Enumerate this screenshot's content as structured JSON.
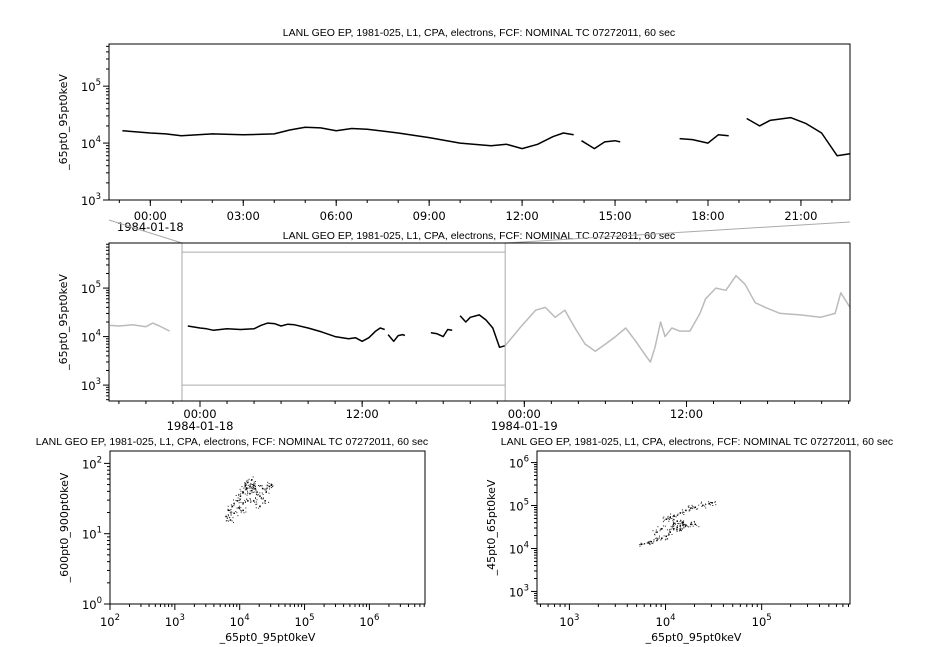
{
  "chart_data": [
    {
      "type": "line",
      "title": "LANL GEO EP, 1981-025, L1, CPA, electrons, FCF: NOMINAL TC 07272011, 60 sec",
      "xlabel": "",
      "ylabel": "_65pt0_95pt0keV",
      "yscale": "log",
      "ylim": [
        1000,
        550000
      ],
      "yticks": [
        1000,
        10000,
        100000
      ],
      "xlim": [
        "1984-01-17 22:40",
        "1984-01-18 22:35"
      ],
      "xticks": [
        {
          "t": "1984-01-18 00:00",
          "label": "00:00",
          "date": "1984-01-18"
        },
        {
          "t": "1984-01-18 03:00",
          "label": "03:00"
        },
        {
          "t": "1984-01-18 06:00",
          "label": "06:00"
        },
        {
          "t": "1984-01-18 09:00",
          "label": "09:00"
        },
        {
          "t": "1984-01-18 12:00",
          "label": "12:00"
        },
        {
          "t": "1984-01-18 15:00",
          "label": "15:00"
        },
        {
          "t": "1984-01-18 18:00",
          "label": "18:00"
        },
        {
          "t": "1984-01-18 21:00",
          "label": "21:00"
        }
      ],
      "minor_tick_hours": 1,
      "grid": false,
      "series": [
        {
          "color": "#000000",
          "points": [
            [
              "1984-01-17 23:06",
              16500
            ],
            [
              "1984-01-18 00:00",
              15000
            ],
            [
              "1984-01-18 00:30",
              14500
            ],
            [
              "1984-01-18 01:00",
              13500
            ],
            [
              "1984-01-18 02:00",
              14500
            ],
            [
              "1984-01-18 03:00",
              14000
            ],
            [
              "1984-01-18 04:00",
              14500
            ],
            [
              "1984-01-18 04:30",
              17000
            ],
            [
              "1984-01-18 05:00",
              19000
            ],
            [
              "1984-01-18 05:30",
              18500
            ],
            [
              "1984-01-18 06:00",
              16500
            ],
            [
              "1984-01-18 06:30",
              18000
            ],
            [
              "1984-01-18 07:00",
              17500
            ],
            [
              "1984-01-18 08:00",
              15000
            ],
            [
              "1984-01-18 09:00",
              12500
            ],
            [
              "1984-01-18 10:00",
              10000
            ],
            [
              "1984-01-18 11:00",
              9000
            ],
            [
              "1984-01-18 11:30",
              9500
            ],
            [
              "1984-01-18 12:00",
              8000
            ],
            [
              "1984-01-18 12:30",
              9500
            ],
            [
              "1984-01-18 13:00",
              13000
            ],
            [
              "1984-01-18 13:20",
              15000
            ],
            [
              "1984-01-18 13:40",
              14000
            ],
            [
              "1984-01-18 13:45",
              null
            ],
            [
              "1984-01-18 13:55",
              11000
            ],
            [
              "1984-01-18 14:20",
              8000
            ],
            [
              "1984-01-18 14:40",
              10500
            ],
            [
              "1984-01-18 15:00",
              11000
            ],
            [
              "1984-01-18 15:10",
              10500
            ],
            [
              "1984-01-18 16:00",
              null
            ],
            [
              "1984-01-18 17:05",
              12000
            ],
            [
              "1984-01-18 17:30",
              11500
            ],
            [
              "1984-01-18 18:00",
              10000
            ],
            [
              "1984-01-18 18:20",
              14000
            ],
            [
              "1984-01-18 18:40",
              13500
            ],
            [
              "1984-01-18 19:00",
              null
            ],
            [
              "1984-01-18 19:15",
              27000
            ],
            [
              "1984-01-18 19:40",
              20000
            ],
            [
              "1984-01-18 20:00",
              25000
            ],
            [
              "1984-01-18 20:40",
              28000
            ],
            [
              "1984-01-18 21:10",
              22000
            ],
            [
              "1984-01-18 21:40",
              15000
            ],
            [
              "1984-01-18 22:10",
              6000
            ],
            [
              "1984-01-18 22:35",
              6500
            ]
          ]
        }
      ]
    },
    {
      "type": "line",
      "title": "LANL GEO EP, 1981-025, L1, CPA, electrons, FCF: NOMINAL TC 07272011, 60 sec",
      "xlabel": "",
      "ylabel": "_65pt0_95pt0keV",
      "yscale": "log",
      "ylim": [
        470,
        850000
      ],
      "yticks": [
        1000,
        10000,
        100000
      ],
      "xlim": [
        "1984-01-17 17:16",
        "1984-01-20 00:06"
      ],
      "xticks": [
        {
          "t": "1984-01-18 00:00",
          "label": "00:00",
          "date": "1984-01-18"
        },
        {
          "t": "1984-01-18 12:00",
          "label": "12:00"
        },
        {
          "t": "1984-01-19 00:00",
          "label": "00:00",
          "date": "1984-01-19"
        },
        {
          "t": "1984-01-19 12:00",
          "label": "12:00"
        }
      ],
      "minor_tick_hours": 2,
      "grid": false,
      "zoom_box": {
        "xlim": [
          "1984-01-17 22:40",
          "1984-01-18 22:35"
        ],
        "ylim": [
          1000,
          550000
        ]
      },
      "focus_series_from_chart": 0,
      "series": [
        {
          "color": "#bbbbbb",
          "points": [
            [
              "1984-01-17 17:20",
              17000
            ],
            [
              "1984-01-17 18:00",
              16500
            ],
            [
              "1984-01-17 19:00",
              17500
            ],
            [
              "1984-01-17 20:00",
              16000
            ],
            [
              "1984-01-17 20:30",
              19000
            ],
            [
              "1984-01-17 21:00",
              16500
            ],
            [
              "1984-01-17 21:45",
              13000
            ]
          ]
        },
        {
          "color": "#bbbbbb",
          "points": [
            [
              "1984-01-18 22:35",
              6500
            ],
            [
              "1984-01-18 23:40",
              15000
            ],
            [
              "1984-01-19 00:50",
              35000
            ],
            [
              "1984-01-19 01:33",
              40000
            ],
            [
              "1984-01-19 02:17",
              25000
            ],
            [
              "1984-01-19 03:00",
              35000
            ],
            [
              "1984-01-19 03:45",
              15000
            ],
            [
              "1984-01-19 04:30",
              7000
            ],
            [
              "1984-01-19 05:15",
              5000
            ],
            [
              "1984-01-19 06:00",
              7000
            ],
            [
              "1984-01-19 06:45",
              10000
            ],
            [
              "1984-01-19 07:30",
              15000
            ],
            [
              "1984-01-19 08:15",
              8000
            ],
            [
              "1984-01-19 09:00",
              4000
            ],
            [
              "1984-01-19 09:20",
              3000
            ],
            [
              "1984-01-19 09:40",
              6000
            ],
            [
              "1984-01-19 10:05",
              20000
            ],
            [
              "1984-01-19 10:25",
              10000
            ],
            [
              "1984-01-19 10:55",
              15000
            ],
            [
              "1984-01-19 11:30",
              13000
            ],
            [
              "1984-01-19 12:15",
              13000
            ],
            [
              "1984-01-19 13:00",
              30000
            ],
            [
              "1984-01-19 13:25",
              60000
            ],
            [
              "1984-01-19 14:10",
              100000
            ],
            [
              "1984-01-19 14:55",
              90000
            ],
            [
              "1984-01-19 15:40",
              180000
            ],
            [
              "1984-01-19 16:20",
              120000
            ],
            [
              "1984-01-19 17:05",
              50000
            ],
            [
              "1984-01-19 17:50",
              40000
            ],
            [
              "1984-01-19 18:55",
              30000
            ],
            [
              "1984-01-19 20:25",
              28000
            ],
            [
              "1984-01-19 21:55",
              25000
            ],
            [
              "1984-01-19 23:00",
              30000
            ],
            [
              "1984-01-19 23:25",
              80000
            ],
            [
              "1984-01-20 00:06",
              40000
            ]
          ]
        }
      ]
    },
    {
      "type": "scatter",
      "title": "LANL GEO EP, 1981-025, L1, CPA, electrons, FCF: NOMINAL TC 07272011, 60 sec",
      "xlabel": "_65pt0_95pt0keV",
      "ylabel": "_600pt0_900pt0keV",
      "xscale": "log",
      "yscale": "log",
      "xlim": [
        100,
        7200000
      ],
      "ylim": [
        1,
        150
      ],
      "xticks": [
        100,
        1000,
        10000,
        100000,
        1000000
      ],
      "yticks": [
        1,
        10,
        100
      ],
      "grid": false,
      "points": [
        [
          6000,
          18
        ],
        [
          6500,
          22
        ],
        [
          7000,
          16
        ],
        [
          7500,
          25
        ],
        [
          8000,
          20
        ],
        [
          9000,
          30
        ],
        [
          9500,
          24
        ],
        [
          10000,
          35
        ],
        [
          11000,
          40
        ],
        [
          11000,
          28
        ],
        [
          12000,
          50
        ],
        [
          12500,
          45
        ],
        [
          13000,
          55
        ],
        [
          14000,
          48
        ],
        [
          14000,
          38
        ],
        [
          15000,
          42
        ],
        [
          16000,
          50
        ],
        [
          16000,
          30
        ],
        [
          17000,
          45
        ],
        [
          18000,
          40
        ],
        [
          20000,
          35
        ],
        [
          22000,
          45
        ],
        [
          25000,
          40
        ],
        [
          28000,
          48
        ],
        [
          30000,
          50
        ],
        [
          20000,
          25
        ],
        [
          13000,
          30
        ],
        [
          15000,
          60
        ],
        [
          11000,
          22
        ],
        [
          24000,
          30
        ]
      ]
    },
    {
      "type": "scatter",
      "title": "LANL GEO EP, 1981-025, L1, CPA, electrons, FCF: NOMINAL TC 07272011, 60 sec",
      "xlabel": "_65pt0_95pt0keV",
      "ylabel": "_45pt0_65pt0keV",
      "xscale": "log",
      "yscale": "log",
      "xlim": [
        460,
        830000
      ],
      "ylim": [
        510,
        1860000
      ],
      "xticks": [
        1000,
        10000,
        100000
      ],
      "yticks": [
        1000,
        10000,
        100000,
        1000000
      ],
      "grid": false,
      "points": [
        [
          5500,
          13000
        ],
        [
          6500,
          14000
        ],
        [
          8000,
          16000
        ],
        [
          9000,
          18000
        ],
        [
          10000,
          20000
        ],
        [
          11000,
          25000
        ],
        [
          12000,
          30000
        ],
        [
          13000,
          32000
        ],
        [
          14000,
          35000
        ],
        [
          15000,
          37000
        ],
        [
          16000,
          36000
        ],
        [
          18000,
          38000
        ],
        [
          20000,
          38000
        ],
        [
          10000,
          50000
        ],
        [
          11000,
          55000
        ],
        [
          12000,
          60000
        ],
        [
          14000,
          70000
        ],
        [
          16000,
          80000
        ],
        [
          18000,
          90000
        ],
        [
          20000,
          95000
        ],
        [
          24000,
          105000
        ],
        [
          28000,
          115000
        ],
        [
          30000,
          120000
        ],
        [
          9000,
          30000
        ],
        [
          8000,
          25000
        ],
        [
          12000,
          40000
        ],
        [
          13000,
          45000
        ],
        [
          14000,
          28000
        ],
        [
          7000,
          15000
        ],
        [
          15000,
          42000
        ]
      ]
    }
  ]
}
